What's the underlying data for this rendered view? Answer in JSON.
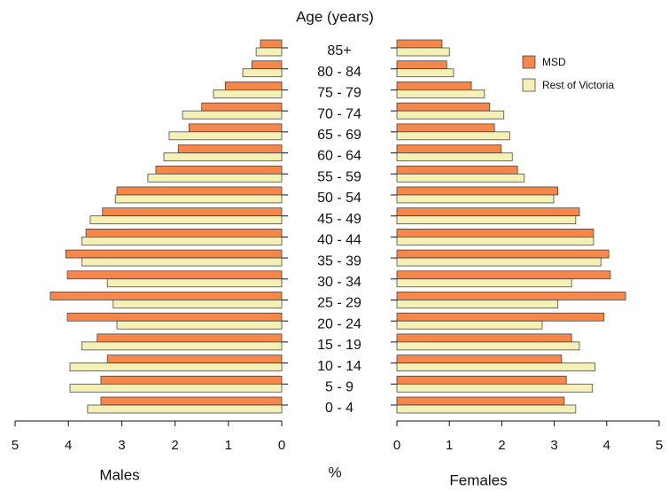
{
  "chart_data": {
    "type": "pyramid",
    "title": "Age (years)",
    "categories": [
      "85+",
      "80 - 84",
      "75 - 79",
      "70 - 74",
      "65 - 69",
      "60 - 64",
      "55 - 59",
      "50 - 54",
      "45 - 49",
      "40 - 44",
      "35 - 39",
      "30 - 34",
      "25 - 29",
      "20 - 24",
      "15 - 19",
      "10 - 14",
      "5 - 9",
      "0 - 4"
    ],
    "left_label": "Males",
    "right_label": "Females",
    "x_label": "%",
    "xlim": [
      0,
      5
    ],
    "xticks": [
      0,
      1,
      2,
      3,
      4,
      5
    ],
    "series": [
      {
        "name": "MSD",
        "color": "#f5874a",
        "males": [
          0.4,
          0.56,
          1.06,
          1.5,
          1.74,
          1.94,
          2.36,
          3.09,
          3.36,
          3.67,
          4.05,
          4.02,
          4.34,
          4.02,
          3.46,
          3.27,
          3.39,
          3.39
        ],
        "females": [
          0.86,
          0.95,
          1.42,
          1.77,
          1.86,
          1.99,
          2.3,
          3.07,
          3.48,
          3.75,
          4.04,
          4.07,
          4.36,
          3.95,
          3.33,
          3.14,
          3.23,
          3.19
        ]
      },
      {
        "name": "Rest of Victoria",
        "color": "#f5f0b5",
        "males": [
          0.48,
          0.73,
          1.28,
          1.86,
          2.11,
          2.21,
          2.51,
          3.12,
          3.59,
          3.75,
          3.75,
          3.27,
          3.16,
          3.09,
          3.75,
          3.97,
          3.97,
          3.64
        ],
        "females": [
          1.0,
          1.08,
          1.67,
          2.04,
          2.15,
          2.2,
          2.43,
          2.99,
          3.41,
          3.75,
          3.89,
          3.33,
          3.07,
          2.77,
          3.48,
          3.78,
          3.73,
          3.41
        ]
      }
    ],
    "legend": "top-right"
  }
}
